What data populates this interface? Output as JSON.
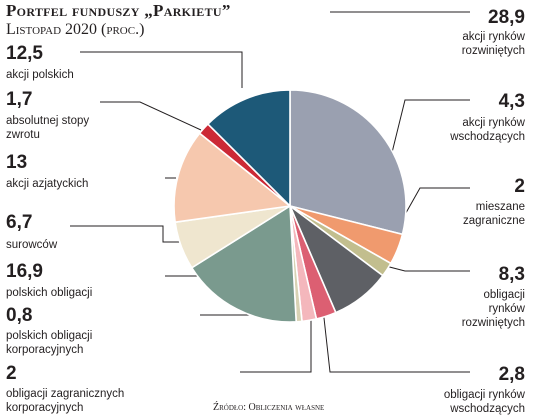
{
  "header": {
    "title": "Portfel funduszy „Parkietu”",
    "subtitle": "Listopad 2020 (proc.)"
  },
  "source": "Źródło: Obliczenia własne",
  "chart_data": {
    "type": "pie",
    "title": "Portfel funduszy „Parkietu”",
    "subtitle": "Listopad 2020 (proc.)",
    "slices": [
      {
        "label": "akcji rynków\nrozwiniętych",
        "value": 28.9,
        "display": "28,9",
        "color": "#9aa0b0"
      },
      {
        "label": "akcji rynków\nwschodzących",
        "value": 4.3,
        "display": "4,3",
        "color": "#f09a6e"
      },
      {
        "label": "mieszane\nzagraniczne",
        "value": 2,
        "display": "2",
        "color": "#c2be8e"
      },
      {
        "label": "obligacji\nrynków\nrozwiniętych",
        "value": 8.3,
        "display": "8,3",
        "color": "#5e6065"
      },
      {
        "label": "obligacji rynków\nwschodzących",
        "value": 2.8,
        "display": "2,8",
        "color": "#dc5f72"
      },
      {
        "label": "obligacji zagranicznych\nkorporacyjnych",
        "value": 2,
        "display": "2",
        "color": "#f4b7bc"
      },
      {
        "label": "polskich obligacji\nkorporacyjnych",
        "value": 0.8,
        "display": "0,8",
        "color": "#d8d2b4"
      },
      {
        "label": "polskich obligacji",
        "value": 16.9,
        "display": "16,9",
        "color": "#7a9a8e"
      },
      {
        "label": "surowców",
        "value": 6.7,
        "display": "6,7",
        "color": "#efe6cf"
      },
      {
        "label": "akcji azjatyckich",
        "value": 13,
        "display": "13",
        "color": "#f6c8ae"
      },
      {
        "label": "absolutnej stopy\nzwrotu",
        "value": 1.7,
        "display": "1,7",
        "color": "#cc2936"
      },
      {
        "label": "akcji polskich",
        "value": 12.5,
        "display": "12,5",
        "color": "#1d5978"
      }
    ]
  }
}
